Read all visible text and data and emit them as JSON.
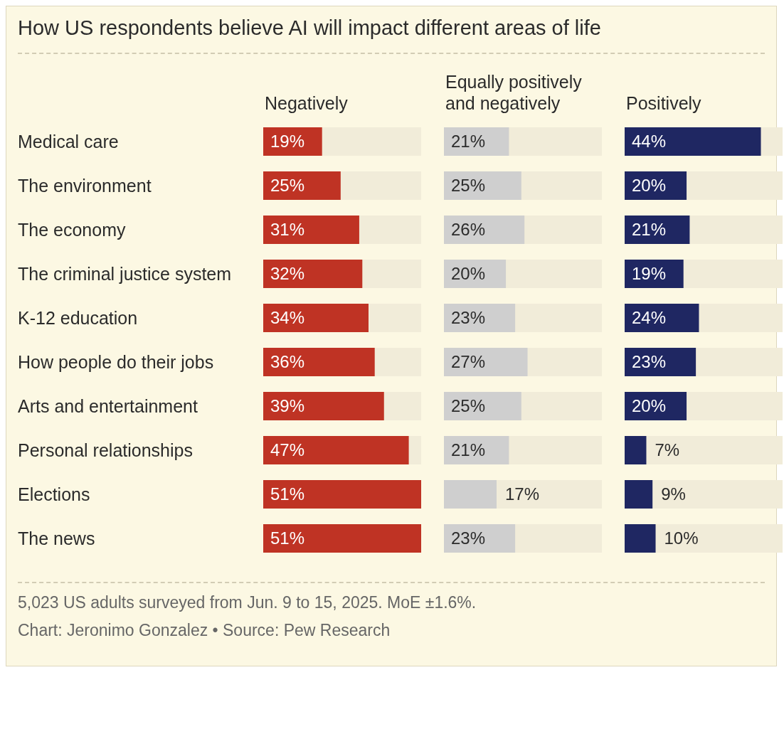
{
  "chart_data": [
    {
      "type": "bar",
      "orientation": "horizontal",
      "title": "How US respondents believe AI will impact different areas of life",
      "xlabel": "Negatively",
      "categories": [
        "Medical care",
        "The environment",
        "The economy",
        "The criminal justice system",
        "K-12 education",
        "How people do their jobs",
        "Arts and entertainment",
        "Personal relationships",
        "Elections",
        "The news"
      ],
      "values": [
        19,
        25,
        31,
        32,
        34,
        36,
        39,
        47,
        51,
        51
      ],
      "value_labels": [
        "19%",
        "25%",
        "31%",
        "32%",
        "34%",
        "36%",
        "39%",
        "47%",
        "51%",
        "51%"
      ],
      "color": "#bf3324",
      "xlim": [
        0,
        51
      ],
      "tick_labels": "y",
      "annotations": [
        "5,023 US adults surveyed from Jun. 9 to 15, 2025. MoE ±1.6%.",
        "Chart: Jeronimo Gonzalez • Source: Pew Research"
      ]
    },
    {
      "type": "bar",
      "orientation": "horizontal",
      "xlabel": "Equally positively and negatively",
      "categories": [
        null,
        null,
        null,
        null,
        null,
        null,
        null,
        null,
        null,
        null
      ],
      "values": [
        21,
        25,
        26,
        20,
        23,
        27,
        25,
        21,
        17,
        23
      ],
      "value_labels": [
        "21%",
        "25%",
        "26%",
        "20%",
        "23%",
        "27%",
        "25%",
        "21%",
        "17%",
        "23%"
      ],
      "color": "#cfcfcf",
      "xlim": [
        0,
        51
      ],
      "tick_labels": false
    },
    {
      "type": "bar",
      "orientation": "horizontal",
      "xlabel": "Positively",
      "categories": [
        null,
        null,
        null,
        null,
        null,
        null,
        null,
        null,
        null,
        null
      ],
      "values": [
        44,
        20,
        21,
        19,
        24,
        23,
        20,
        7,
        9,
        10
      ],
      "value_labels": [
        "44%",
        "20%",
        "21%",
        "19%",
        "24%",
        "23%",
        "20%",
        "7%",
        "9%",
        "10%"
      ],
      "color": "#1f2762",
      "xlim": [
        0,
        51
      ],
      "tick_labels": false
    }
  ]
}
